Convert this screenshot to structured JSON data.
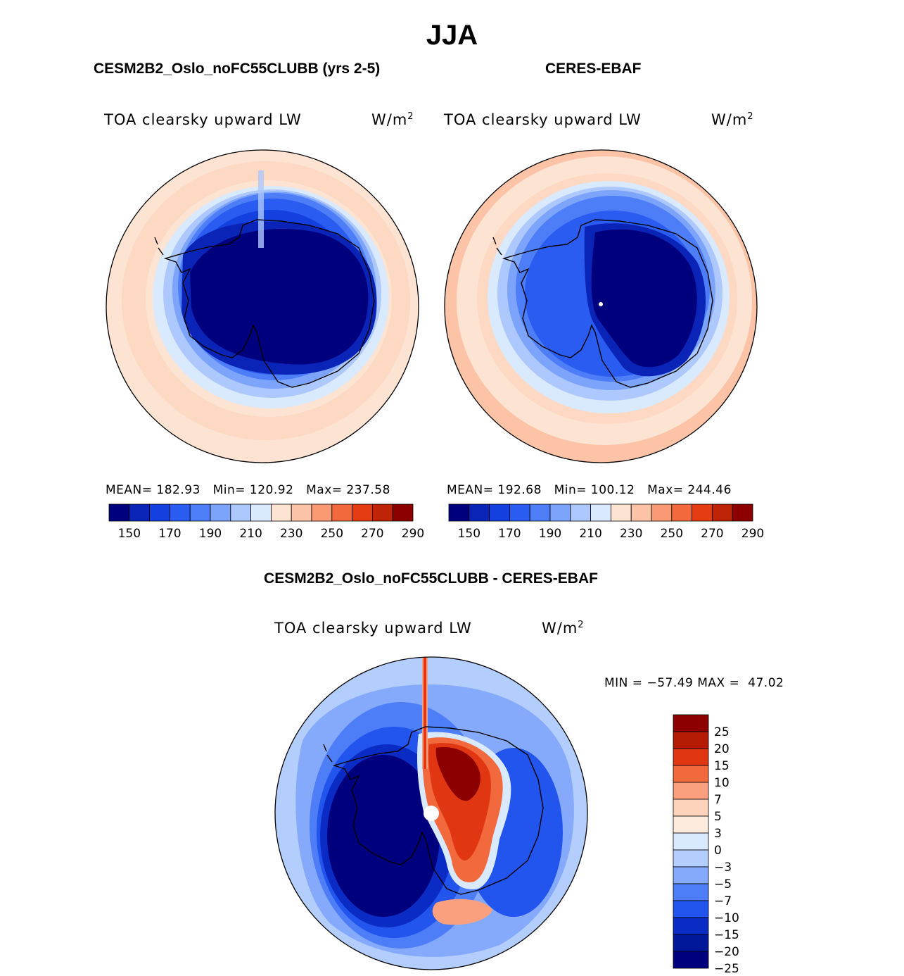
{
  "figure": {
    "season": "JJA",
    "model_title": "CESM2B2_Oslo_noFC55CLUBB (yrs 2-5)",
    "obs_title": "CERES-EBAF",
    "diff_title": "CESM2B2_Oslo_noFC55CLUBB - CERES-EBAF"
  },
  "panels": {
    "model": {
      "variable": "TOA clearsky upward LW",
      "units_base": "W/m",
      "units_exp": "2",
      "stats": "MEAN= 182.93   Min= 120.92   Max= 237.58"
    },
    "obs": {
      "variable": "TOA clearsky upward LW",
      "units_base": "W/m",
      "units_exp": "2",
      "stats": "MEAN= 192.68   Min= 100.12   Max= 244.46"
    },
    "diff": {
      "variable": "TOA clearsky upward LW",
      "units_base": "W/m",
      "units_exp": "2",
      "stats": "MIN = −57.49 MAX =  47.02"
    }
  },
  "chart_data": [
    {
      "type": "heatmap",
      "title": "CESM2B2_Oslo_noFC55CLUBB (yrs 2-5)",
      "variable": "TOA clearsky upward LW",
      "units": "W/m2",
      "projection": "south polar stereographic",
      "mean": 182.93,
      "min": 120.92,
      "max": 237.58,
      "colorbar_levels": [
        150,
        160,
        170,
        180,
        190,
        200,
        210,
        220,
        230,
        240,
        250,
        260,
        270,
        280,
        290
      ],
      "colorbar_tick_labels": [
        "150",
        "170",
        "190",
        "210",
        "230",
        "250",
        "270",
        "290"
      ]
    },
    {
      "type": "heatmap",
      "title": "CERES-EBAF",
      "variable": "TOA clearsky upward LW",
      "units": "W/m2",
      "projection": "south polar stereographic",
      "mean": 192.68,
      "min": 100.12,
      "max": 244.46,
      "colorbar_levels": [
        150,
        160,
        170,
        180,
        190,
        200,
        210,
        220,
        230,
        240,
        250,
        260,
        270,
        280,
        290
      ],
      "colorbar_tick_labels": [
        "150",
        "170",
        "190",
        "210",
        "230",
        "250",
        "270",
        "290"
      ]
    },
    {
      "type": "heatmap",
      "title": "CESM2B2_Oslo_noFC55CLUBB - CERES-EBAF",
      "variable": "TOA clearsky upward LW",
      "units": "W/m2",
      "projection": "south polar stereographic",
      "min": -57.49,
      "max": 47.02,
      "colorbar_tick_labels": [
        "25",
        "20",
        "15",
        "10",
        "7",
        "5",
        "3",
        "0",
        "−3",
        "−5",
        "−7",
        "−10",
        "−15",
        "−20",
        "−25"
      ]
    }
  ],
  "colors": {
    "seq": [
      "#00007f",
      "#0a24b8",
      "#1540e0",
      "#2a5cf2",
      "#4d7ef8",
      "#7da4fb",
      "#adc8fd",
      "#d9e9fe",
      "#fde3d2",
      "#fcc3a7",
      "#fa9a75",
      "#f2693d",
      "#e53c14",
      "#c02408",
      "#8c0000"
    ],
    "div": [
      "#8c0000",
      "#b51a05",
      "#e03712",
      "#f2693d",
      "#fba07e",
      "#fdd3bc",
      "#fdecde",
      "#d9e9fe",
      "#b3cdfd",
      "#85a9fb",
      "#4d7ef8",
      "#2254ee",
      "#0a2cc4",
      "#001899",
      "#00007f"
    ]
  }
}
